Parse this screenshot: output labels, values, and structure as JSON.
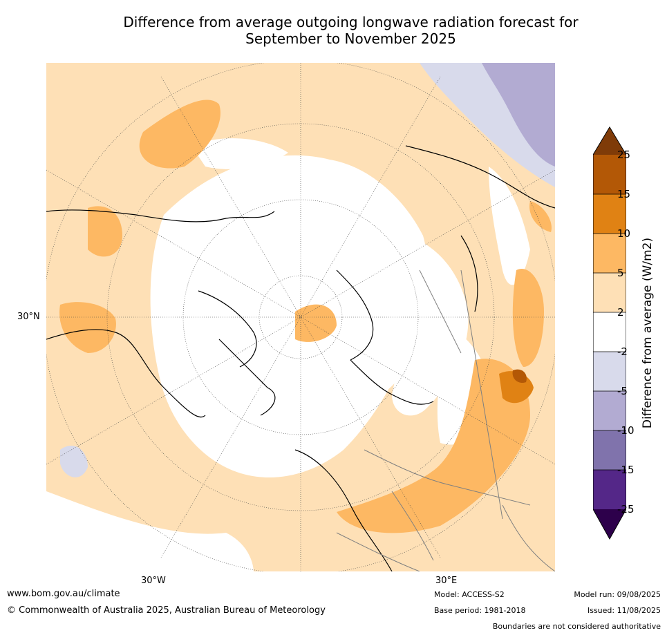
{
  "title_line1": "Difference from average outgoing longwave radiation forecast for",
  "title_line2": "September to November 2025",
  "map": {
    "lat_label": "30°N",
    "lon_labels": [
      "30°W",
      "30°E"
    ]
  },
  "colorbar": {
    "title": "Difference from average (W/m2)",
    "levels": [
      "25",
      "15",
      "10",
      "5",
      "2",
      "-2",
      "-5",
      "-10",
      "-15",
      "-25"
    ],
    "colors": {
      "above_25": "#7f3b08",
      "15_25": "#b35806",
      "10_15": "#e08214",
      "5_10": "#fdb863",
      "2_5": "#fee0b6",
      "neutral": "#ffffff",
      "m5_m2": "#d8daeb",
      "m10_m5": "#b2abd2",
      "m15_m10": "#8073ac",
      "m25_m15": "#542788",
      "below_m25": "#2d004b"
    }
  },
  "footer": {
    "website": "www.bom.gov.au/climate",
    "copyright": "© Commonwealth of Australia 2025, Australian Bureau of Meteorology",
    "model": "Model: ACCESS-S2",
    "base_period": "Base period: 1981-2018",
    "model_run": "Model run: 09/08/2025",
    "issued": "Issued: 11/08/2025",
    "disclaimer": "Boundaries are not considered authoritative"
  }
}
